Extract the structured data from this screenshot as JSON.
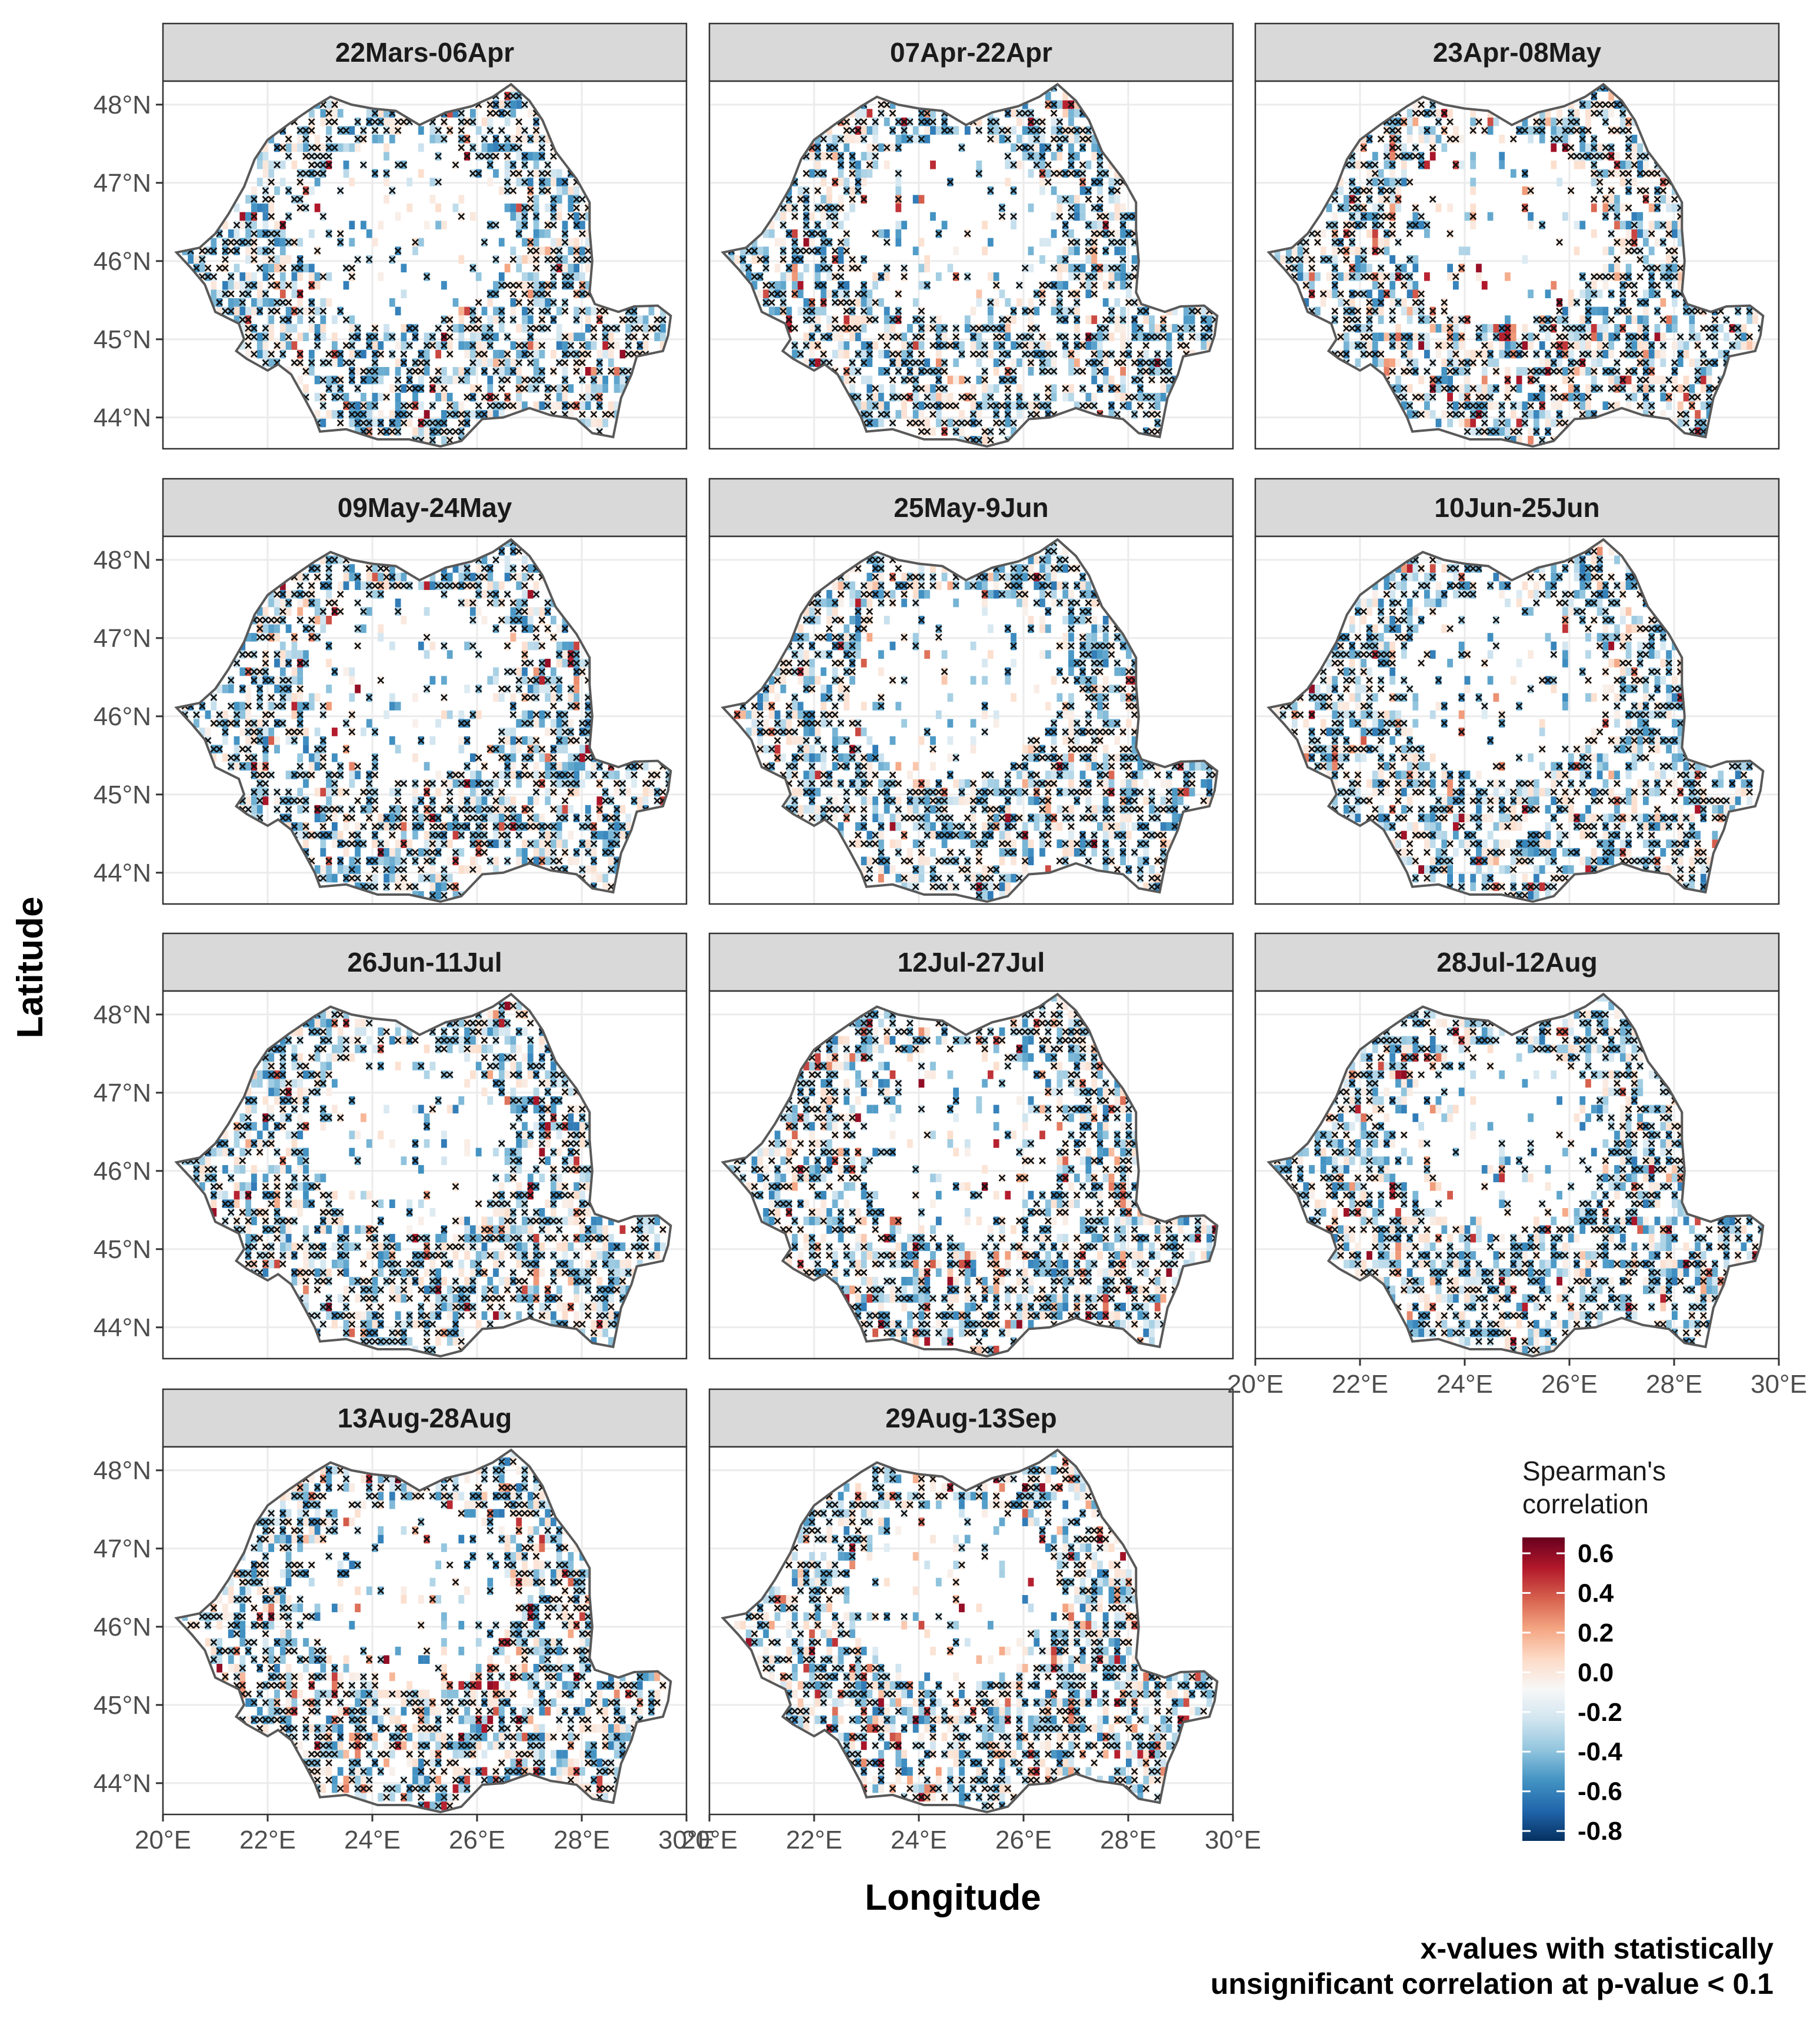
{
  "chart_data": {
    "type": "heatmap",
    "kind": "faceted map grid of Spearman's correlation values over Romania",
    "xlabel": "Longitude",
    "ylabel": "Latitude",
    "xlim": [
      20,
      30
    ],
    "ylim": [
      43.6,
      48.3
    ],
    "x_ticks": [
      {
        "value": 20,
        "label": "20°E"
      },
      {
        "value": 22,
        "label": "22°E"
      },
      {
        "value": 24,
        "label": "24°E"
      },
      {
        "value": 26,
        "label": "26°E"
      },
      {
        "value": 28,
        "label": "28°E"
      },
      {
        "value": 30,
        "label": "30°E"
      }
    ],
    "y_ticks": [
      {
        "value": 44,
        "label": "44°N"
      },
      {
        "value": 45,
        "label": "45°N"
      },
      {
        "value": 46,
        "label": "46°N"
      },
      {
        "value": 47,
        "label": "47°N"
      },
      {
        "value": 48,
        "label": "48°N"
      }
    ],
    "facets": [
      {
        "label": "22Mars-06Apr"
      },
      {
        "label": "07Apr-22Apr"
      },
      {
        "label": "23Apr-08May"
      },
      {
        "label": "09May-24May"
      },
      {
        "label": "25May-9Jun"
      },
      {
        "label": "10Jun-25Jun"
      },
      {
        "label": "26Jun-11Jul"
      },
      {
        "label": "12Jul-27Jul"
      },
      {
        "label": "28Jul-12Aug"
      },
      {
        "label": "13Aug-28Aug"
      },
      {
        "label": "29Aug-13Sep"
      }
    ],
    "color_scale": {
      "title": [
        "Spearman's",
        "correlation"
      ],
      "range": [
        -0.85,
        0.68
      ],
      "breaks": [
        {
          "value": 0.6,
          "label": "0.6"
        },
        {
          "value": 0.4,
          "label": "0.4"
        },
        {
          "value": 0.2,
          "label": "0.2"
        },
        {
          "value": 0.0,
          "label": "0.0"
        },
        {
          "value": -0.2,
          "label": "-0.2"
        },
        {
          "value": -0.4,
          "label": "-0.4"
        },
        {
          "value": -0.6,
          "label": "-0.6"
        },
        {
          "value": -0.8,
          "label": "-0.8"
        }
      ],
      "colors": [
        "#053061",
        "#2166ac",
        "#4393c3",
        "#92c5de",
        "#d1e5f0",
        "#f7f7f7",
        "#fddbc7",
        "#f4a582",
        "#d6604d",
        "#b2182b",
        "#67001f"
      ]
    },
    "caption": [
      "x-values with statistically",
      "unsignificant correlation at p-value < 0.1"
    ],
    "outline_lonlat": [
      [
        20.26,
        46.11
      ],
      [
        20.7,
        46.17
      ],
      [
        21.0,
        46.35
      ],
      [
        21.25,
        46.6
      ],
      [
        21.55,
        46.95
      ],
      [
        21.75,
        47.3
      ],
      [
        22.0,
        47.55
      ],
      [
        22.4,
        47.75
      ],
      [
        22.9,
        47.98
      ],
      [
        23.2,
        48.1
      ],
      [
        23.6,
        48.0
      ],
      [
        24.0,
        47.95
      ],
      [
        24.45,
        47.92
      ],
      [
        24.9,
        47.74
      ],
      [
        25.4,
        47.9
      ],
      [
        25.9,
        47.98
      ],
      [
        26.3,
        48.1
      ],
      [
        26.65,
        48.26
      ],
      [
        27.0,
        48.05
      ],
      [
        27.25,
        47.8
      ],
      [
        27.5,
        47.4
      ],
      [
        27.9,
        47.05
      ],
      [
        28.15,
        46.75
      ],
      [
        28.15,
        46.4
      ],
      [
        28.2,
        46.0
      ],
      [
        28.15,
        45.6
      ],
      [
        28.25,
        45.45
      ],
      [
        28.7,
        45.35
      ],
      [
        29.0,
        45.42
      ],
      [
        29.45,
        45.43
      ],
      [
        29.7,
        45.3
      ],
      [
        29.65,
        45.05
      ],
      [
        29.55,
        44.85
      ],
      [
        29.05,
        44.78
      ],
      [
        28.95,
        44.55
      ],
      [
        28.75,
        44.25
      ],
      [
        28.6,
        43.75
      ],
      [
        28.2,
        43.8
      ],
      [
        27.9,
        43.98
      ],
      [
        27.4,
        44.03
      ],
      [
        27.0,
        44.12
      ],
      [
        26.5,
        44.0
      ],
      [
        26.1,
        43.98
      ],
      [
        25.7,
        43.7
      ],
      [
        25.3,
        43.63
      ],
      [
        24.7,
        43.72
      ],
      [
        24.1,
        43.72
      ],
      [
        23.5,
        43.85
      ],
      [
        23.0,
        43.82
      ],
      [
        22.9,
        44.0
      ],
      [
        22.7,
        44.25
      ],
      [
        22.45,
        44.55
      ],
      [
        22.2,
        44.68
      ],
      [
        22.0,
        44.6
      ],
      [
        21.6,
        44.75
      ],
      [
        21.4,
        44.85
      ],
      [
        21.55,
        45.0
      ],
      [
        21.45,
        45.2
      ],
      [
        21.0,
        45.35
      ],
      [
        20.8,
        45.7
      ],
      [
        20.55,
        45.9
      ],
      [
        20.26,
        46.11
      ]
    ],
    "sample_regions": [
      {
        "lon": 22.0,
        "lat": 44.8,
        "value": -0.35
      },
      {
        "lon": 21.2,
        "lat": 45.9,
        "value": -0.3
      },
      {
        "lon": 27.3,
        "lat": 46.4,
        "value": -0.25
      },
      {
        "lon": 26.2,
        "lat": 44.3,
        "value": -0.2
      }
    ]
  }
}
